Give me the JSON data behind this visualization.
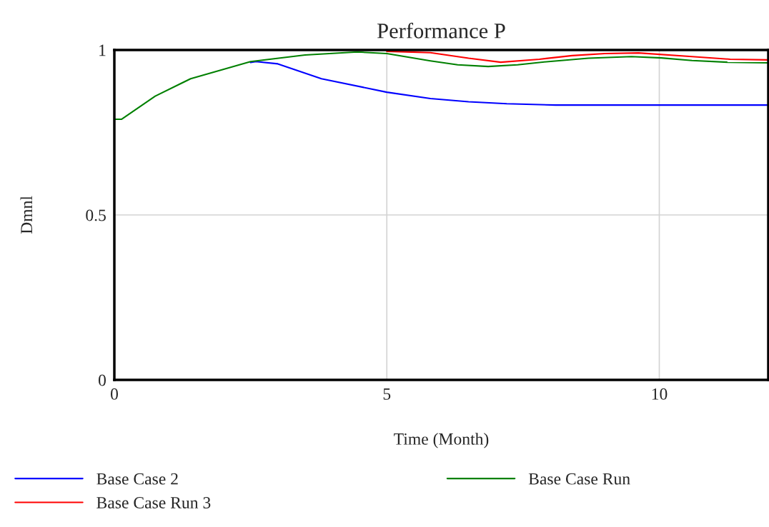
{
  "chart_data": {
    "type": "line",
    "title": "Performance P",
    "xlabel": "Time (Month)",
    "ylabel": "Dmnl",
    "xlim": [
      0,
      12
    ],
    "ylim": [
      0,
      1
    ],
    "xticks": [
      0,
      5,
      10
    ],
    "yticks": [
      0,
      0.5,
      1
    ],
    "grid": true,
    "legend": "bottom",
    "line_style": "solid",
    "series": [
      {
        "name": "Base Case 2",
        "color": "#0000ff",
        "x": [
          2.5,
          2.6,
          3.0,
          3.8,
          5.0,
          5.8,
          6.5,
          7.2,
          8.1,
          9,
          10,
          11,
          12
        ],
        "values": [
          0.962,
          0.965,
          0.958,
          0.913,
          0.872,
          0.853,
          0.843,
          0.837,
          0.833,
          0.833,
          0.833,
          0.833,
          0.833
        ]
      },
      {
        "name": "Base Case Run 3",
        "color": "#ff0000",
        "x": [
          5.0,
          5.8,
          6.5,
          7.09,
          7.8,
          8.4,
          9.0,
          9.62,
          10.6,
          11.3,
          12
        ],
        "values": [
          0.996,
          0.992,
          0.975,
          0.963,
          0.972,
          0.983,
          0.989,
          0.991,
          0.98,
          0.972,
          0.97
        ]
      },
      {
        "name": "Base Case Run",
        "color": "#008000",
        "x": [
          0,
          0.13,
          0.75,
          1.4,
          2.5,
          3.5,
          4.46,
          5.0,
          5.8,
          6.3,
          6.86,
          7.4,
          7.97,
          8.7,
          9.49,
          10.04,
          10.6,
          11.25,
          12
        ],
        "values": [
          0.79,
          0.79,
          0.86,
          0.913,
          0.965,
          0.985,
          0.994,
          0.989,
          0.967,
          0.955,
          0.95,
          0.955,
          0.965,
          0.975,
          0.98,
          0.976,
          0.968,
          0.963,
          0.961
        ]
      }
    ]
  }
}
